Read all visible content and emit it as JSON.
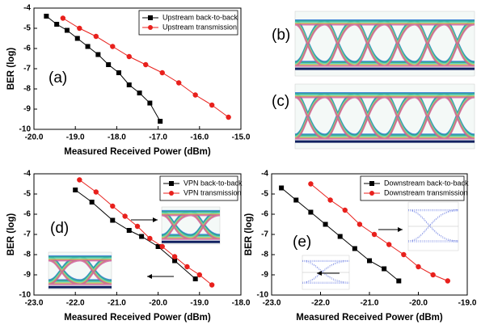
{
  "chart_data": [
    {
      "type": "scatter",
      "annotation": "(a)",
      "x_label": "Measured Received Power (dBm)",
      "y_label": "BER (log)",
      "xlim": [
        -20,
        -15
      ],
      "xticks": [
        {
          "value": -20,
          "label": "-20.0"
        },
        {
          "value": -19,
          "label": "-19.0"
        },
        {
          "value": -18,
          "label": "-18.0"
        },
        {
          "value": -17,
          "label": "-17.0"
        },
        {
          "value": -16,
          "label": "-16.0"
        },
        {
          "value": -15,
          "label": "-15.0"
        }
      ],
      "ylim": [
        -10,
        -4
      ],
      "yticks": [
        -4,
        -5,
        -6,
        -7,
        -8,
        -9,
        -10
      ],
      "legend": "upper right",
      "series": [
        {
          "name": "Upstream back-to-back",
          "color": "#000000",
          "marker": "square",
          "x": [
            -19.7,
            -19.45,
            -19.2,
            -18.95,
            -18.7,
            -18.45,
            -18.2,
            -17.95,
            -17.7,
            -17.45,
            -17.2,
            -16.95
          ],
          "values": [
            -4.4,
            -4.8,
            -5.1,
            -5.5,
            -5.9,
            -6.3,
            -6.8,
            -7.2,
            -7.8,
            -8.2,
            -8.7,
            -9.6
          ]
        },
        {
          "name": "Upstream transmission",
          "color": "#e8201c",
          "marker": "circle",
          "x": [
            -19.3,
            -18.9,
            -18.5,
            -18.1,
            -17.7,
            -17.3,
            -16.9,
            -16.5,
            -16.1,
            -15.7,
            -15.3
          ],
          "values": [
            -4.5,
            -5.0,
            -5.4,
            -5.9,
            -6.4,
            -6.8,
            -7.2,
            -7.7,
            -8.3,
            -8.8,
            -9.4
          ]
        }
      ]
    },
    {
      "type": "scatter",
      "annotation": "(d)",
      "x_label": "Measured Received Power (dBm)",
      "y_label": "BER (log)",
      "xlim": [
        -23,
        -18
      ],
      "xticks": [
        {
          "value": -23,
          "label": "-23.0"
        },
        {
          "value": -22,
          "label": "-22.0"
        },
        {
          "value": -21,
          "label": "-21.0"
        },
        {
          "value": -20,
          "label": "-20.0"
        },
        {
          "value": -19,
          "label": "-19.0"
        },
        {
          "value": -18,
          "label": "-18.0"
        }
      ],
      "ylim": [
        -10,
        -4
      ],
      "yticks": [
        -4,
        -5,
        -6,
        -7,
        -8,
        -9,
        -10
      ],
      "legend": "upper right",
      "series": [
        {
          "name": "VPN back-to-back",
          "color": "#000000",
          "marker": "square",
          "x": [
            -22.0,
            -21.6,
            -21.1,
            -20.7,
            -20.4,
            -20.0,
            -19.6,
            -19.1
          ],
          "values": [
            -4.8,
            -5.4,
            -6.3,
            -6.8,
            -7.1,
            -7.6,
            -8.3,
            -9.2
          ]
        },
        {
          "name": "VPN transmission",
          "color": "#e8201c",
          "marker": "circle",
          "x": [
            -21.9,
            -21.5,
            -21.1,
            -20.8,
            -20.5,
            -20.2,
            -19.9,
            -19.6,
            -19.3,
            -19.0,
            -18.7
          ],
          "values": [
            -4.3,
            -4.9,
            -5.6,
            -6.1,
            -6.6,
            -7.2,
            -7.6,
            -8.1,
            -8.6,
            -9.0,
            -9.5
          ]
        }
      ]
    },
    {
      "type": "scatter",
      "annotation": "(e)",
      "x_label": "Measured Received Power (dBm)",
      "y_label": "BER (log)",
      "xlim": [
        -23,
        -19
      ],
      "xticks": [
        {
          "value": -23,
          "label": "-23.0"
        },
        {
          "value": -22,
          "label": "-22.0"
        },
        {
          "value": -21,
          "label": "-21.0"
        },
        {
          "value": -20,
          "label": "-20.0"
        },
        {
          "value": -19,
          "label": "-19.0"
        }
      ],
      "ylim": [
        -10,
        -4
      ],
      "yticks": [
        -4,
        -5,
        -6,
        -7,
        -8,
        -9,
        -10
      ],
      "legend": "upper right",
      "series": [
        {
          "name": "Downstream back-to-back",
          "color": "#000000",
          "marker": "square",
          "x": [
            -22.8,
            -22.5,
            -22.2,
            -21.9,
            -21.6,
            -21.3,
            -21.0,
            -20.7,
            -20.4
          ],
          "values": [
            -4.7,
            -5.3,
            -5.9,
            -6.5,
            -7.1,
            -7.7,
            -8.3,
            -8.7,
            -9.3
          ]
        },
        {
          "name": "Downstream transmission",
          "color": "#e8201c",
          "marker": "circle",
          "x": [
            -22.2,
            -21.8,
            -21.5,
            -21.2,
            -20.9,
            -20.6,
            -20.3,
            -20.0,
            -19.7,
            -19.4
          ],
          "values": [
            -4.5,
            -5.3,
            -5.8,
            -6.5,
            -7.0,
            -7.5,
            -8.0,
            -8.6,
            -9.0,
            -9.3
          ]
        }
      ]
    }
  ],
  "eye_panels": [
    "(b)",
    "(c)"
  ]
}
